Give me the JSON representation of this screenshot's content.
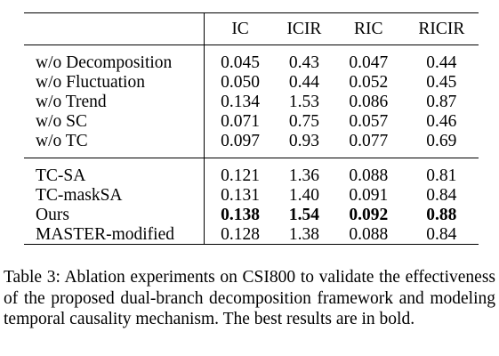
{
  "table": {
    "columns": [
      "",
      "IC",
      "ICIR",
      "RIC",
      "RICIR"
    ],
    "groups": [
      {
        "rows": [
          {
            "name": "w/o Decomposition",
            "values": [
              "0.045",
              "0.43",
              "0.047",
              "0.44"
            ],
            "bold": false
          },
          {
            "name": "w/o Fluctuation",
            "values": [
              "0.050",
              "0.44",
              "0.052",
              "0.45"
            ],
            "bold": false
          },
          {
            "name": "w/o Trend",
            "values": [
              "0.134",
              "1.53",
              "0.086",
              "0.87"
            ],
            "bold": false
          },
          {
            "name": "w/o SC",
            "values": [
              "0.071",
              "0.75",
              "0.057",
              "0.46"
            ],
            "bold": false
          },
          {
            "name": "w/o TC",
            "values": [
              "0.097",
              "0.93",
              "0.077",
              "0.69"
            ],
            "bold": false
          }
        ]
      },
      {
        "rows": [
          {
            "name": "TC-SA",
            "values": [
              "0.121",
              "1.36",
              "0.088",
              "0.81"
            ],
            "bold": false
          },
          {
            "name": "TC-maskSA",
            "values": [
              "0.131",
              "1.40",
              "0.091",
              "0.84"
            ],
            "bold": false
          },
          {
            "name": "Ours",
            "values": [
              "0.138",
              "1.54",
              "0.092",
              "0.88"
            ],
            "bold": true
          },
          {
            "name": "MASTER-modified",
            "values": [
              "0.128",
              "1.38",
              "0.088",
              "0.84"
            ],
            "bold": false
          }
        ]
      }
    ]
  },
  "caption": "Table 3: Ablation experiments on CSI800 to validate the effectiveness of the proposed dual-branch decomposition framework and modeling temporal causality mechanism. The best results are in bold."
}
